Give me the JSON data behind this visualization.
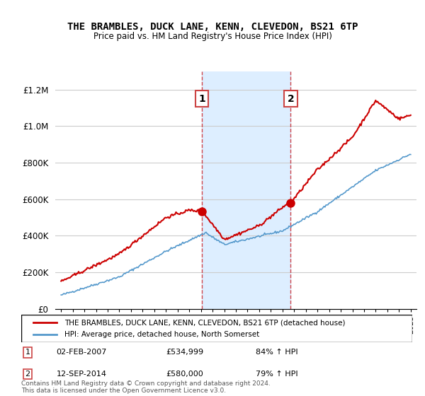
{
  "title": "THE BRAMBLES, DUCK LANE, KENN, CLEVEDON, BS21 6TP",
  "subtitle": "Price paid vs. HM Land Registry's House Price Index (HPI)",
  "legend_line1": "THE BRAMBLES, DUCK LANE, KENN, CLEVEDON, BS21 6TP (detached house)",
  "legend_line2": "HPI: Average price, detached house, North Somerset",
  "annotation1_label": "1",
  "annotation1_date": "02-FEB-2007",
  "annotation1_price": "£534,999",
  "annotation1_hpi": "84% ↑ HPI",
  "annotation2_label": "2",
  "annotation2_date": "12-SEP-2014",
  "annotation2_price": "£580,000",
  "annotation2_hpi": "79% ↑ HPI",
  "footer": "Contains HM Land Registry data © Crown copyright and database right 2024.\nThis data is licensed under the Open Government Licence v3.0.",
  "red_color": "#cc0000",
  "blue_color": "#5599cc",
  "shading_color": "#ddeeff",
  "background_color": "#ffffff",
  "grid_color": "#cccccc",
  "sale1_x": 2007.09,
  "sale1_y": 534999,
  "sale2_x": 2014.71,
  "sale2_y": 580000,
  "ylim": [
    0,
    1300000
  ],
  "xlim": [
    1994.5,
    2025.5
  ]
}
